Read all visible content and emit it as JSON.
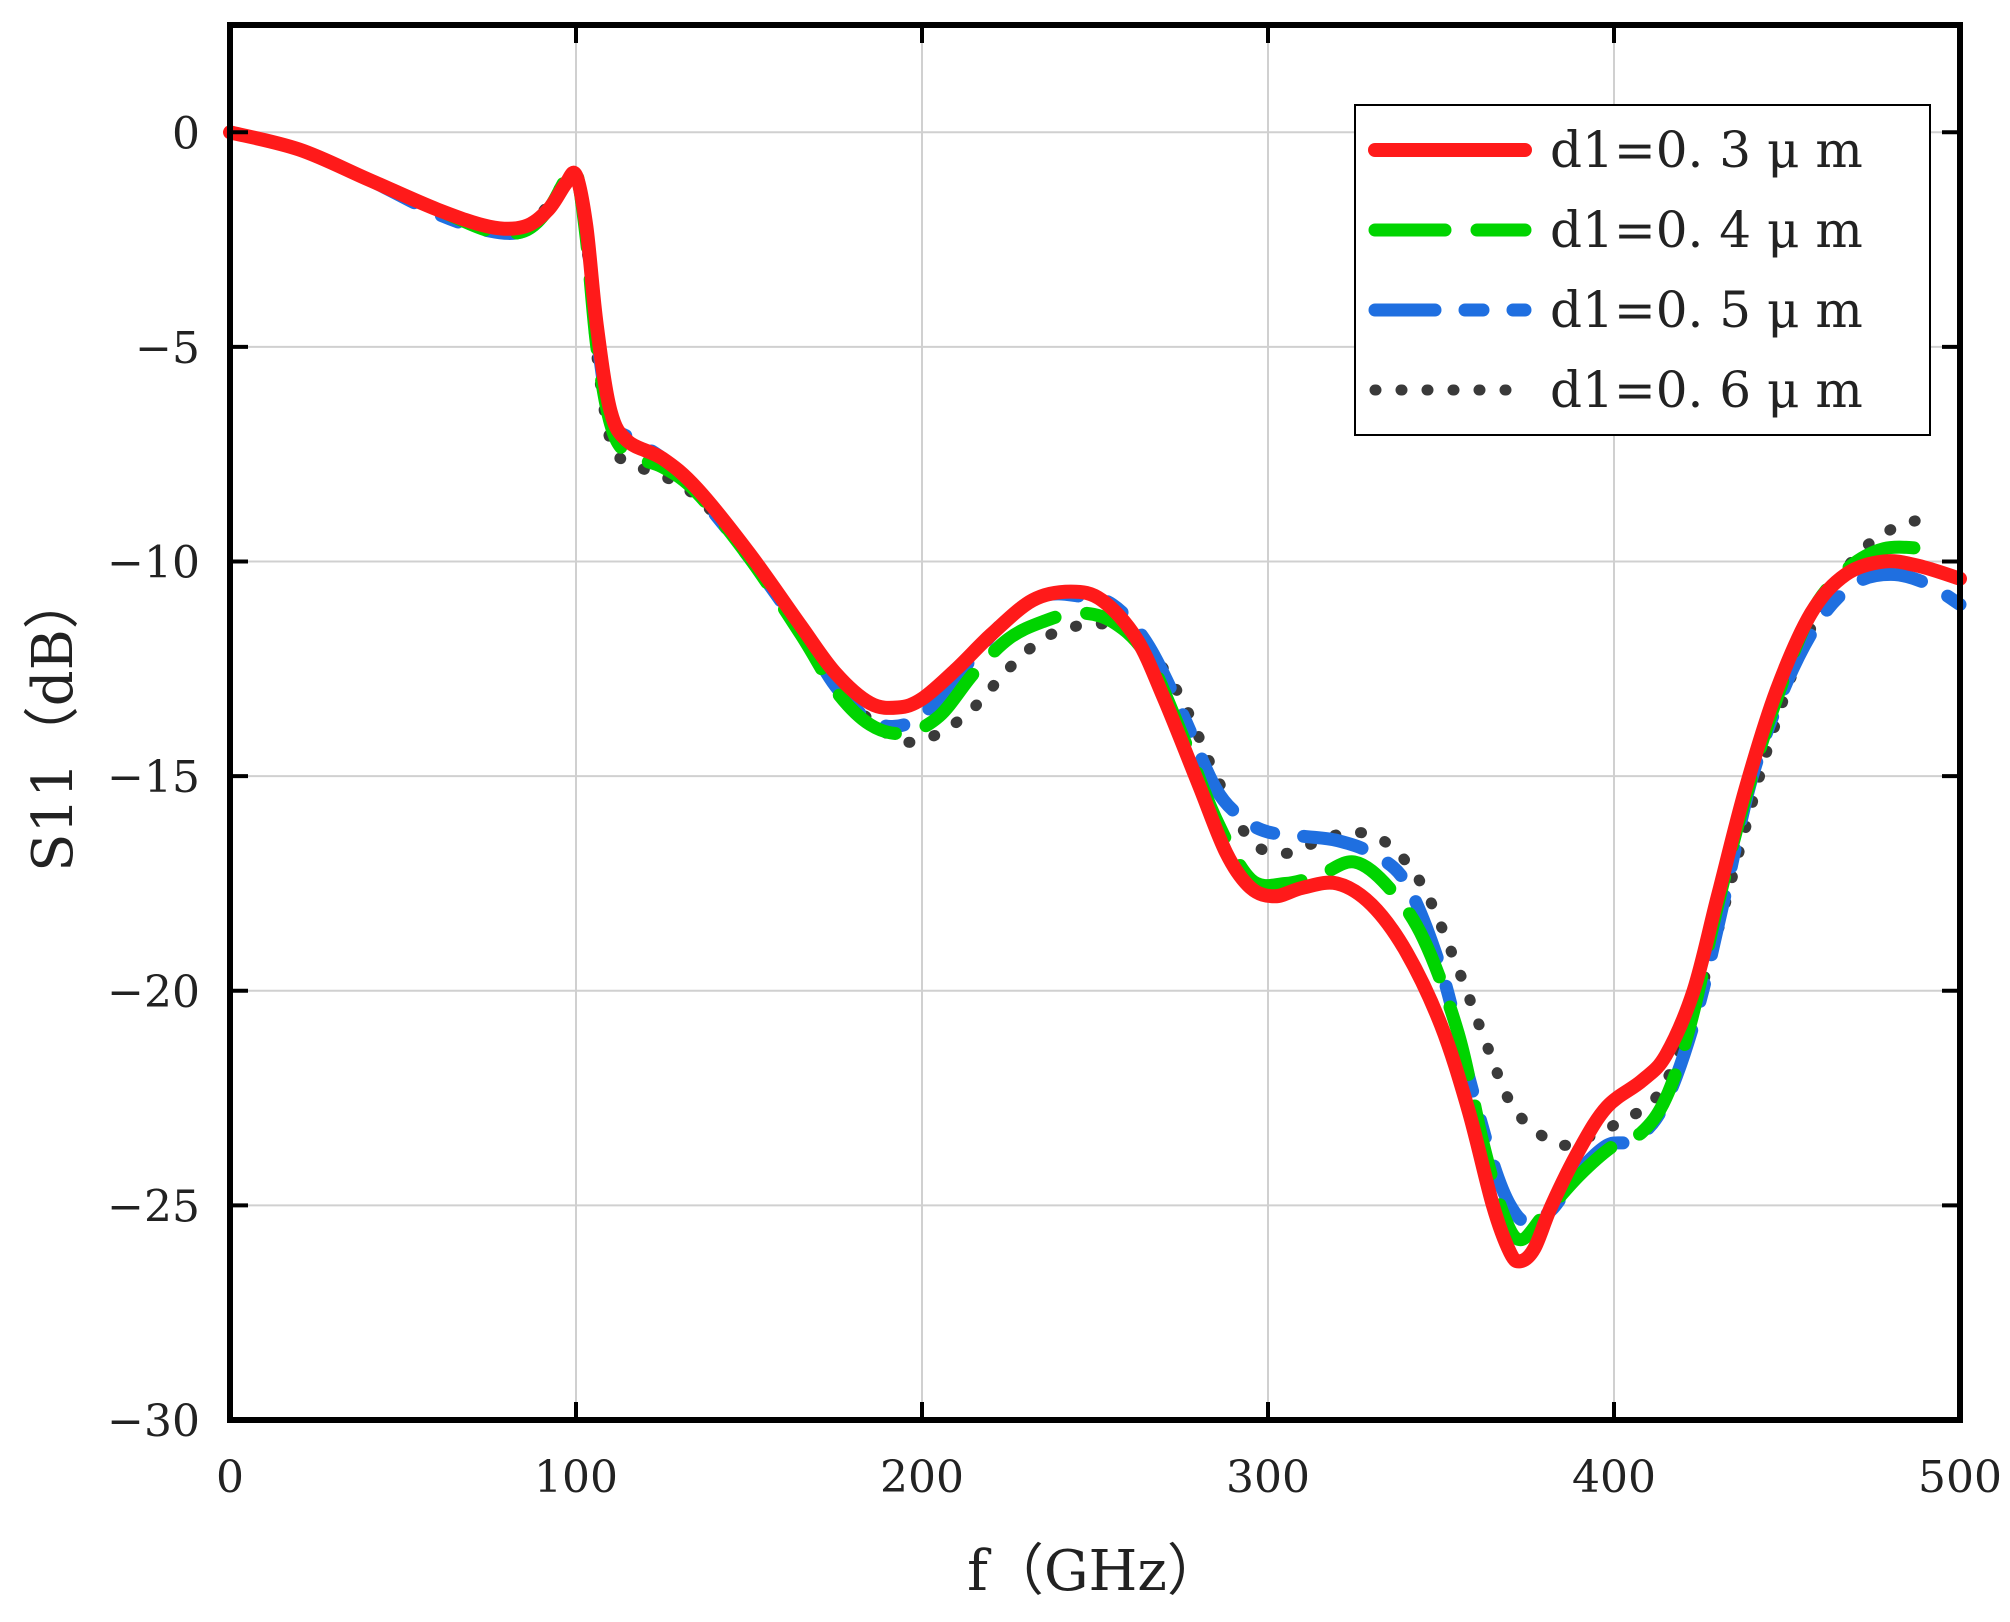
{
  "chart_data": {
    "type": "line",
    "title": "",
    "xlabel": "f（GHz）",
    "ylabel": "S11（dB）",
    "xlim": [
      0,
      500
    ],
    "ylim": [
      -30,
      2.5
    ],
    "xticks": [
      0,
      100,
      200,
      300,
      400,
      500
    ],
    "xtick_labels": [
      "0",
      "100",
      "200",
      "300",
      "400",
      "500"
    ],
    "yticks": [
      0,
      -5,
      -10,
      -15,
      -20,
      -25,
      -30
    ],
    "ytick_labels": [
      "0",
      "−5",
      "−10",
      "−15",
      "−20",
      "−25",
      "−30"
    ],
    "grid": true,
    "legend_position": "top-right",
    "series": [
      {
        "name": "d1=0. 3 μ m",
        "color": "#ff1a1a",
        "style": "solid",
        "points": [
          [
            0,
            0
          ],
          [
            20,
            -0.4
          ],
          [
            40,
            -1.1
          ],
          [
            60,
            -1.8
          ],
          [
            75,
            -2.2
          ],
          [
            85,
            -2.2
          ],
          [
            92,
            -1.8
          ],
          [
            97,
            -1.2
          ],
          [
            100,
            -1.0
          ],
          [
            103,
            -2.2
          ],
          [
            106,
            -4.5
          ],
          [
            110,
            -6.5
          ],
          [
            115,
            -7.2
          ],
          [
            125,
            -7.6
          ],
          [
            135,
            -8.3
          ],
          [
            150,
            -9.8
          ],
          [
            165,
            -11.5
          ],
          [
            175,
            -12.6
          ],
          [
            185,
            -13.3
          ],
          [
            193,
            -13.4
          ],
          [
            200,
            -13.2
          ],
          [
            210,
            -12.5
          ],
          [
            220,
            -11.7
          ],
          [
            232,
            -10.9
          ],
          [
            243,
            -10.7
          ],
          [
            252,
            -10.9
          ],
          [
            262,
            -11.8
          ],
          [
            270,
            -13.2
          ],
          [
            280,
            -15.2
          ],
          [
            288,
            -16.8
          ],
          [
            295,
            -17.6
          ],
          [
            302,
            -17.8
          ],
          [
            310,
            -17.6
          ],
          [
            320,
            -17.5
          ],
          [
            330,
            -18.0
          ],
          [
            340,
            -19.1
          ],
          [
            350,
            -20.8
          ],
          [
            358,
            -22.8
          ],
          [
            365,
            -25.0
          ],
          [
            370,
            -26.1
          ],
          [
            373,
            -26.3
          ],
          [
            377,
            -26.0
          ],
          [
            382,
            -25.0
          ],
          [
            390,
            -23.7
          ],
          [
            398,
            -22.7
          ],
          [
            408,
            -22.1
          ],
          [
            415,
            -21.5
          ],
          [
            423,
            -20.0
          ],
          [
            430,
            -17.8
          ],
          [
            438,
            -15.3
          ],
          [
            447,
            -13.0
          ],
          [
            457,
            -11.2
          ],
          [
            467,
            -10.3
          ],
          [
            478,
            -10.0
          ],
          [
            488,
            -10.1
          ],
          [
            500,
            -10.4
          ]
        ]
      },
      {
        "name": "d1=0. 4 μ m",
        "color": "#00d400",
        "style": "dashed",
        "points": [
          [
            0,
            0
          ],
          [
            20,
            -0.4
          ],
          [
            40,
            -1.1
          ],
          [
            60,
            -1.8
          ],
          [
            75,
            -2.3
          ],
          [
            85,
            -2.3
          ],
          [
            92,
            -1.8
          ],
          [
            97,
            -1.1
          ],
          [
            100,
            -0.9
          ],
          [
            103,
            -2.5
          ],
          [
            106,
            -5.0
          ],
          [
            110,
            -6.8
          ],
          [
            115,
            -7.5
          ],
          [
            125,
            -7.8
          ],
          [
            135,
            -8.4
          ],
          [
            150,
            -9.9
          ],
          [
            165,
            -11.7
          ],
          [
            175,
            -13.0
          ],
          [
            185,
            -13.8
          ],
          [
            195,
            -14.0
          ],
          [
            205,
            -13.6
          ],
          [
            215,
            -12.6
          ],
          [
            225,
            -11.8
          ],
          [
            235,
            -11.4
          ],
          [
            245,
            -11.2
          ],
          [
            255,
            -11.4
          ],
          [
            265,
            -12.2
          ],
          [
            275,
            -14.0
          ],
          [
            285,
            -16.0
          ],
          [
            295,
            -17.4
          ],
          [
            305,
            -17.5
          ],
          [
            315,
            -17.3
          ],
          [
            325,
            -17.0
          ],
          [
            335,
            -17.6
          ],
          [
            345,
            -18.8
          ],
          [
            355,
            -21.0
          ],
          [
            362,
            -23.5
          ],
          [
            368,
            -25.2
          ],
          [
            373,
            -25.8
          ],
          [
            380,
            -25.2
          ],
          [
            390,
            -24.3
          ],
          [
            400,
            -23.6
          ],
          [
            408,
            -23.3
          ],
          [
            415,
            -22.5
          ],
          [
            422,
            -20.8
          ],
          [
            430,
            -18.0
          ],
          [
            438,
            -15.5
          ],
          [
            447,
            -13.2
          ],
          [
            457,
            -11.2
          ],
          [
            467,
            -10.2
          ],
          [
            478,
            -9.7
          ],
          [
            490,
            -9.7
          ]
        ]
      },
      {
        "name": "d1=0. 5 μ m",
        "color": "#1f6fe0",
        "style": "dashdot",
        "points": [
          [
            0,
            0
          ],
          [
            20,
            -0.4
          ],
          [
            40,
            -1.1
          ],
          [
            60,
            -1.9
          ],
          [
            75,
            -2.3
          ],
          [
            85,
            -2.3
          ],
          [
            92,
            -1.8
          ],
          [
            97,
            -1.2
          ],
          [
            100,
            -1.1
          ],
          [
            103,
            -2.3
          ],
          [
            106,
            -4.7
          ],
          [
            110,
            -6.7
          ],
          [
            115,
            -7.1
          ],
          [
            125,
            -7.6
          ],
          [
            135,
            -8.4
          ],
          [
            150,
            -9.9
          ],
          [
            165,
            -11.6
          ],
          [
            175,
            -12.9
          ],
          [
            185,
            -13.7
          ],
          [
            195,
            -13.8
          ],
          [
            205,
            -13.2
          ],
          [
            215,
            -12.2
          ],
          [
            225,
            -11.3
          ],
          [
            235,
            -10.8
          ],
          [
            245,
            -10.8
          ],
          [
            255,
            -11.0
          ],
          [
            265,
            -11.9
          ],
          [
            275,
            -13.5
          ],
          [
            285,
            -15.3
          ],
          [
            293,
            -16.0
          ],
          [
            300,
            -16.3
          ],
          [
            310,
            -16.4
          ],
          [
            320,
            -16.5
          ],
          [
            330,
            -16.8
          ],
          [
            340,
            -17.5
          ],
          [
            350,
            -19.5
          ],
          [
            358,
            -22.0
          ],
          [
            365,
            -24.0
          ],
          [
            370,
            -25.0
          ],
          [
            375,
            -25.4
          ],
          [
            382,
            -25.1
          ],
          [
            390,
            -24.2
          ],
          [
            398,
            -23.6
          ],
          [
            405,
            -23.5
          ],
          [
            412,
            -23.0
          ],
          [
            418,
            -22.0
          ],
          [
            425,
            -20.2
          ],
          [
            432,
            -17.8
          ],
          [
            440,
            -15.0
          ],
          [
            450,
            -12.8
          ],
          [
            460,
            -11.3
          ],
          [
            470,
            -10.5
          ],
          [
            480,
            -10.3
          ],
          [
            490,
            -10.5
          ],
          [
            500,
            -11.0
          ]
        ]
      },
      {
        "name": "d1=0. 6 μ m",
        "color": "#3a3a3a",
        "style": "dotted",
        "points": [
          [
            0,
            0
          ],
          [
            20,
            -0.4
          ],
          [
            40,
            -1.1
          ],
          [
            60,
            -1.8
          ],
          [
            75,
            -2.2
          ],
          [
            85,
            -2.2
          ],
          [
            92,
            -1.7
          ],
          [
            97,
            -1.1
          ],
          [
            100,
            -1.1
          ],
          [
            103,
            -2.6
          ],
          [
            106,
            -5.2
          ],
          [
            110,
            -7.2
          ],
          [
            115,
            -7.7
          ],
          [
            125,
            -8.0
          ],
          [
            135,
            -8.5
          ],
          [
            150,
            -9.8
          ],
          [
            165,
            -11.5
          ],
          [
            175,
            -12.8
          ],
          [
            185,
            -13.7
          ],
          [
            195,
            -14.2
          ],
          [
            205,
            -14.0
          ],
          [
            215,
            -13.4
          ],
          [
            225,
            -12.5
          ],
          [
            235,
            -11.8
          ],
          [
            245,
            -11.5
          ],
          [
            255,
            -11.5
          ],
          [
            265,
            -12.0
          ],
          [
            275,
            -13.2
          ],
          [
            285,
            -15.0
          ],
          [
            295,
            -16.5
          ],
          [
            305,
            -16.8
          ],
          [
            315,
            -16.5
          ],
          [
            325,
            -16.3
          ],
          [
            335,
            -16.6
          ],
          [
            345,
            -17.6
          ],
          [
            355,
            -19.5
          ],
          [
            362,
            -21.0
          ],
          [
            370,
            -22.6
          ],
          [
            378,
            -23.3
          ],
          [
            385,
            -23.6
          ],
          [
            393,
            -23.4
          ],
          [
            403,
            -23.0
          ],
          [
            412,
            -22.5
          ],
          [
            420,
            -21.2
          ],
          [
            428,
            -19.2
          ],
          [
            436,
            -16.8
          ],
          [
            445,
            -14.2
          ],
          [
            455,
            -11.9
          ],
          [
            465,
            -10.4
          ],
          [
            475,
            -9.5
          ],
          [
            485,
            -9.1
          ],
          [
            492,
            -9.0
          ]
        ]
      }
    ]
  }
}
